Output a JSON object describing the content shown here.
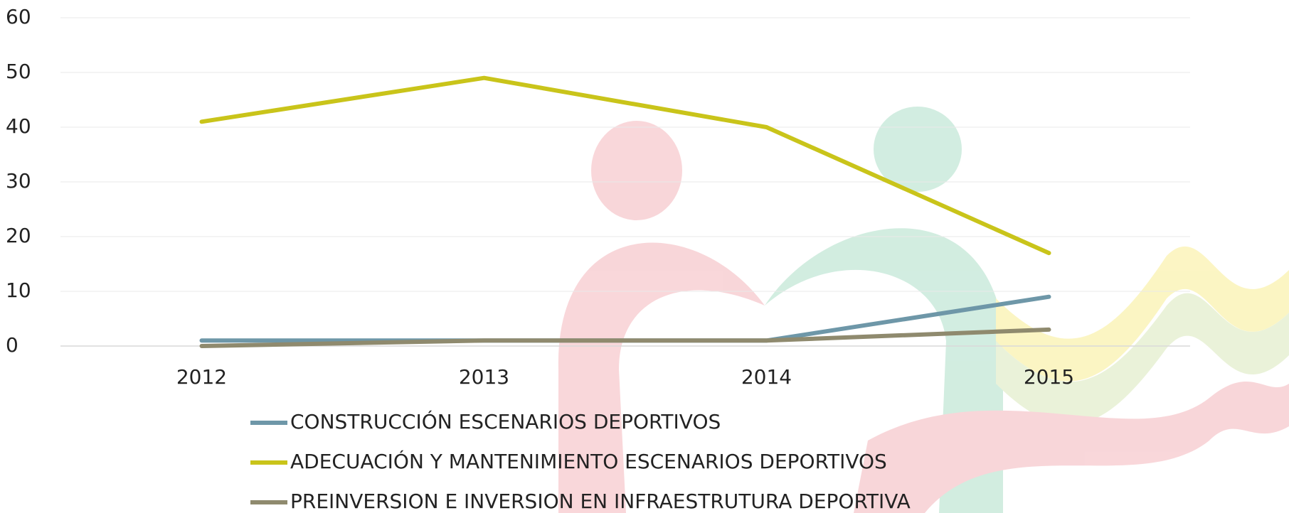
{
  "chart_data": {
    "type": "line",
    "categories": [
      "2012",
      "2013",
      "2014",
      "2015"
    ],
    "series": [
      {
        "name": "CONSTRUCCIÓN ESCENARIOS DEPORTIVOS",
        "color": "#6e97a8",
        "values": [
          1,
          1,
          1,
          9
        ]
      },
      {
        "name": "ADECUACIÓN Y MANTENIMIENTO ESCENARIOS DEPORTIVOS",
        "color": "#c9c41a",
        "values": [
          41,
          49,
          40,
          17
        ]
      },
      {
        "name": "PREINVERSION E INVERSION EN INFRAESTRUTURA DEPORTIVA",
        "color": "#8f8a6e",
        "values": [
          0,
          1,
          1,
          3
        ]
      }
    ],
    "ylim": [
      0,
      60
    ],
    "yticks": [
      0,
      10,
      20,
      30,
      40,
      50,
      60
    ],
    "grid": true,
    "legend": "bottom"
  }
}
